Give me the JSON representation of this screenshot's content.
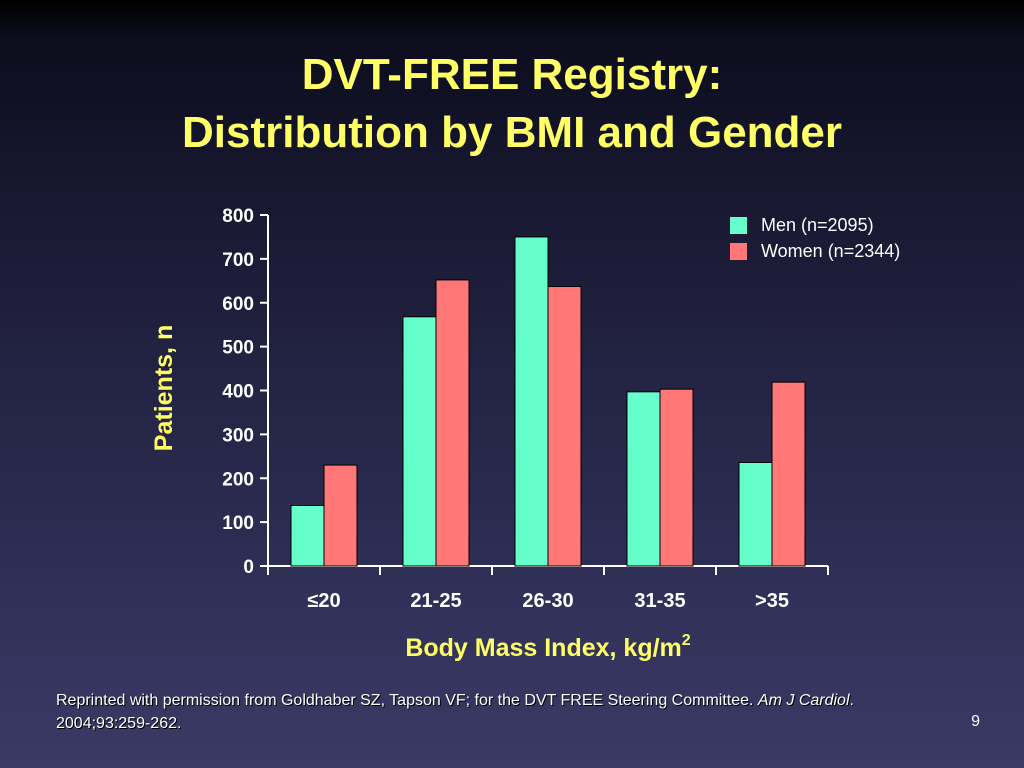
{
  "slide": {
    "title_line1": "DVT-FREE Registry:",
    "title_line2": "Distribution by BMI and Gender",
    "footnote_part1": "Reprinted with permission from Goldhaber SZ, Tapson VF; for the DVT FREE Steering Committee. ",
    "footnote_journal": "Am J Cardiol",
    "footnote_part2": ". 2004;93:259-262.",
    "page_number": "9"
  },
  "chart_data": {
    "type": "bar",
    "xlabel": "Body Mass Index, kg/m",
    "xlabel_superscript": "2",
    "ylabel": "Patients, n",
    "ylim": [
      0,
      800
    ],
    "yticks": [
      0,
      100,
      200,
      300,
      400,
      500,
      600,
      700,
      800
    ],
    "categories": [
      "≤20",
      "21-25",
      "26-30",
      "31-35",
      ">35"
    ],
    "series": [
      {
        "name": "Men (n=2095)",
        "values": [
          138,
          568,
          750,
          397,
          236
        ],
        "color": "#66ffcc"
      },
      {
        "name": "Women (n=2344)",
        "values": [
          230,
          652,
          637,
          403,
          419
        ],
        "color": "#ff7777"
      }
    ],
    "legend_position": "top-right",
    "grid": false
  }
}
